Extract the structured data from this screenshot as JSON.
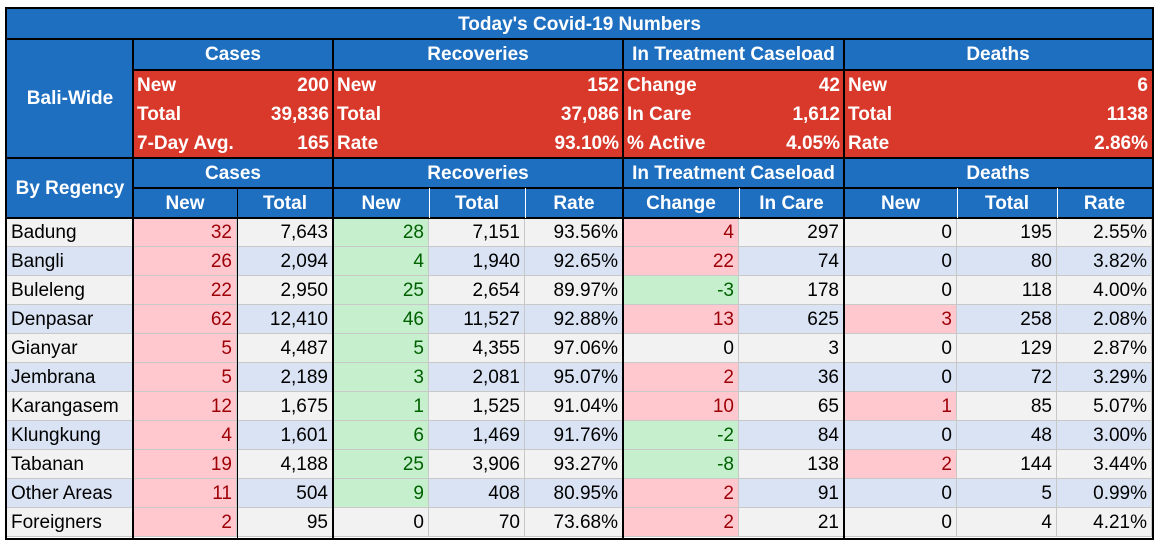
{
  "chart_data": {
    "type": "table",
    "title": "Today's Covid-19 Numbers",
    "bali_wide": {
      "label": "Bali-Wide",
      "cases": {
        "header": "Cases",
        "rows": [
          [
            "New",
            "200"
          ],
          [
            "Total",
            "39,836"
          ],
          [
            "7-Day Avg.",
            "165"
          ]
        ]
      },
      "recoveries": {
        "header": "Recoveries",
        "rows": [
          [
            "New",
            "152"
          ],
          [
            "Total",
            "37,086"
          ],
          [
            "Rate",
            "93.10%"
          ]
        ]
      },
      "treatment": {
        "header": "In Treatment Caseload",
        "rows": [
          [
            "Change",
            "42"
          ],
          [
            "In Care",
            "1,612"
          ],
          [
            "% Active",
            "4.05%"
          ]
        ]
      },
      "deaths": {
        "header": "Deaths",
        "rows": [
          [
            "New",
            "6"
          ],
          [
            "Total",
            "1138"
          ],
          [
            "Rate",
            "2.86%"
          ]
        ]
      }
    },
    "by_regency": {
      "label": "By Regency",
      "groups": [
        "Cases",
        "Recoveries",
        "In Treatment Caseload",
        "Deaths"
      ],
      "columns": [
        "New",
        "Total",
        "New",
        "Total",
        "Rate",
        "Change",
        "In Care",
        "New",
        "Total",
        "Rate"
      ],
      "rows": [
        {
          "name": "Badung",
          "cases_new": "32",
          "cases_total": "7,643",
          "rec_new": "28",
          "rec_total": "7,151",
          "rec_rate": "93.56%",
          "change": "4",
          "in_care": "297",
          "deaths_new": "0",
          "deaths_total": "195",
          "death_rate": "2.55%"
        },
        {
          "name": "Bangli",
          "cases_new": "26",
          "cases_total": "2,094",
          "rec_new": "4",
          "rec_total": "1,940",
          "rec_rate": "92.65%",
          "change": "22",
          "in_care": "74",
          "deaths_new": "0",
          "deaths_total": "80",
          "death_rate": "3.82%"
        },
        {
          "name": "Buleleng",
          "cases_new": "22",
          "cases_total": "2,950",
          "rec_new": "25",
          "rec_total": "2,654",
          "rec_rate": "89.97%",
          "change": "-3",
          "in_care": "178",
          "deaths_new": "0",
          "deaths_total": "118",
          "death_rate": "4.00%"
        },
        {
          "name": "Denpasar",
          "cases_new": "62",
          "cases_total": "12,410",
          "rec_new": "46",
          "rec_total": "11,527",
          "rec_rate": "92.88%",
          "change": "13",
          "in_care": "625",
          "deaths_new": "3",
          "deaths_total": "258",
          "death_rate": "2.08%"
        },
        {
          "name": "Gianyar",
          "cases_new": "5",
          "cases_total": "4,487",
          "rec_new": "5",
          "rec_total": "4,355",
          "rec_rate": "97.06%",
          "change": "0",
          "in_care": "3",
          "deaths_new": "0",
          "deaths_total": "129",
          "death_rate": "2.87%"
        },
        {
          "name": "Jembrana",
          "cases_new": "5",
          "cases_total": "2,189",
          "rec_new": "3",
          "rec_total": "2,081",
          "rec_rate": "95.07%",
          "change": "2",
          "in_care": "36",
          "deaths_new": "0",
          "deaths_total": "72",
          "death_rate": "3.29%"
        },
        {
          "name": "Karangasem",
          "cases_new": "12",
          "cases_total": "1,675",
          "rec_new": "1",
          "rec_total": "1,525",
          "rec_rate": "91.04%",
          "change": "10",
          "in_care": "65",
          "deaths_new": "1",
          "deaths_total": "85",
          "death_rate": "5.07%"
        },
        {
          "name": "Klungkung",
          "cases_new": "4",
          "cases_total": "1,601",
          "rec_new": "6",
          "rec_total": "1,469",
          "rec_rate": "91.76%",
          "change": "-2",
          "in_care": "84",
          "deaths_new": "0",
          "deaths_total": "48",
          "death_rate": "3.00%"
        },
        {
          "name": "Tabanan",
          "cases_new": "19",
          "cases_total": "4,188",
          "rec_new": "25",
          "rec_total": "3,906",
          "rec_rate": "93.27%",
          "change": "-8",
          "in_care": "138",
          "deaths_new": "2",
          "deaths_total": "144",
          "death_rate": "3.44%"
        },
        {
          "name": "Other Areas",
          "cases_new": "11",
          "cases_total": "504",
          "rec_new": "9",
          "rec_total": "408",
          "rec_rate": "80.95%",
          "change": "2",
          "in_care": "91",
          "deaths_new": "0",
          "deaths_total": "5",
          "death_rate": "0.99%"
        },
        {
          "name": "Foreigners",
          "cases_new": "2",
          "cases_total": "95",
          "rec_new": "0",
          "rec_total": "70",
          "rec_rate": "73.68%",
          "change": "2",
          "in_care": "21",
          "deaths_new": "0",
          "deaths_total": "4",
          "death_rate": "4.21%"
        }
      ]
    },
    "colors": {
      "header_blue": "#1f6fc1",
      "summary_red": "#d8392b",
      "stripe_light": "#f2f2f2",
      "stripe_blue": "#dae3f3",
      "bad_fill": "#ffc7ce",
      "bad_text": "#9c0006",
      "good_fill": "#c6efce",
      "good_text": "#006100"
    }
  }
}
